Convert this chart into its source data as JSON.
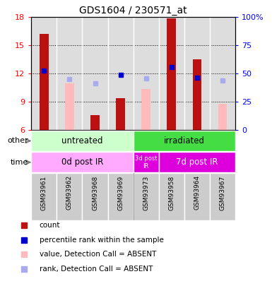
{
  "title": "GDS1604 / 230571_at",
  "samples": [
    "GSM93961",
    "GSM93962",
    "GSM93968",
    "GSM93969",
    "GSM93973",
    "GSM93958",
    "GSM93964",
    "GSM93967"
  ],
  "count_values": [
    16.2,
    null,
    7.6,
    9.4,
    null,
    17.9,
    13.5,
    null
  ],
  "absent_value": [
    null,
    11.0,
    null,
    null,
    10.4,
    null,
    null,
    8.8
  ],
  "percentile_rank_present": [
    12.3,
    null,
    null,
    11.9,
    null,
    12.7,
    11.6,
    null
  ],
  "percentile_rank_absent": [
    null,
    11.4,
    11.0,
    null,
    11.5,
    null,
    null,
    11.3
  ],
  "ylim": [
    6,
    18
  ],
  "yticks": [
    6,
    9,
    12,
    15,
    18
  ],
  "y2ticks": [
    0,
    25,
    50,
    75,
    100
  ],
  "y2labels": [
    "0",
    "25",
    "50",
    "75",
    "100%"
  ],
  "bar_width": 0.35,
  "count_color": "#bb1111",
  "absent_bar_color": "#ffbbbb",
  "rank_present_color": "#0000cc",
  "rank_absent_color": "#aaaaee",
  "group_other": [
    {
      "label": "untreated",
      "start": 0,
      "end": 4,
      "color": "#ccffcc"
    },
    {
      "label": "irradiated",
      "start": 4,
      "end": 8,
      "color": "#44dd44"
    }
  ],
  "group_time": [
    {
      "label": "0d post IR",
      "start": 0,
      "end": 4,
      "color": "#ffaaff"
    },
    {
      "label": "3d post\nIR",
      "start": 4,
      "end": 5,
      "color": "#dd00dd"
    },
    {
      "label": "7d post IR",
      "start": 5,
      "end": 8,
      "color": "#dd00dd"
    }
  ],
  "legend_items": [
    {
      "label": "count",
      "color": "#bb1111"
    },
    {
      "label": "percentile rank within the sample",
      "color": "#0000cc"
    },
    {
      "label": "value, Detection Call = ABSENT",
      "color": "#ffbbbb"
    },
    {
      "label": "rank, Detection Call = ABSENT",
      "color": "#aaaaee"
    }
  ],
  "other_label": "other",
  "time_label": "time",
  "plot_bg_color": "#dddddd"
}
